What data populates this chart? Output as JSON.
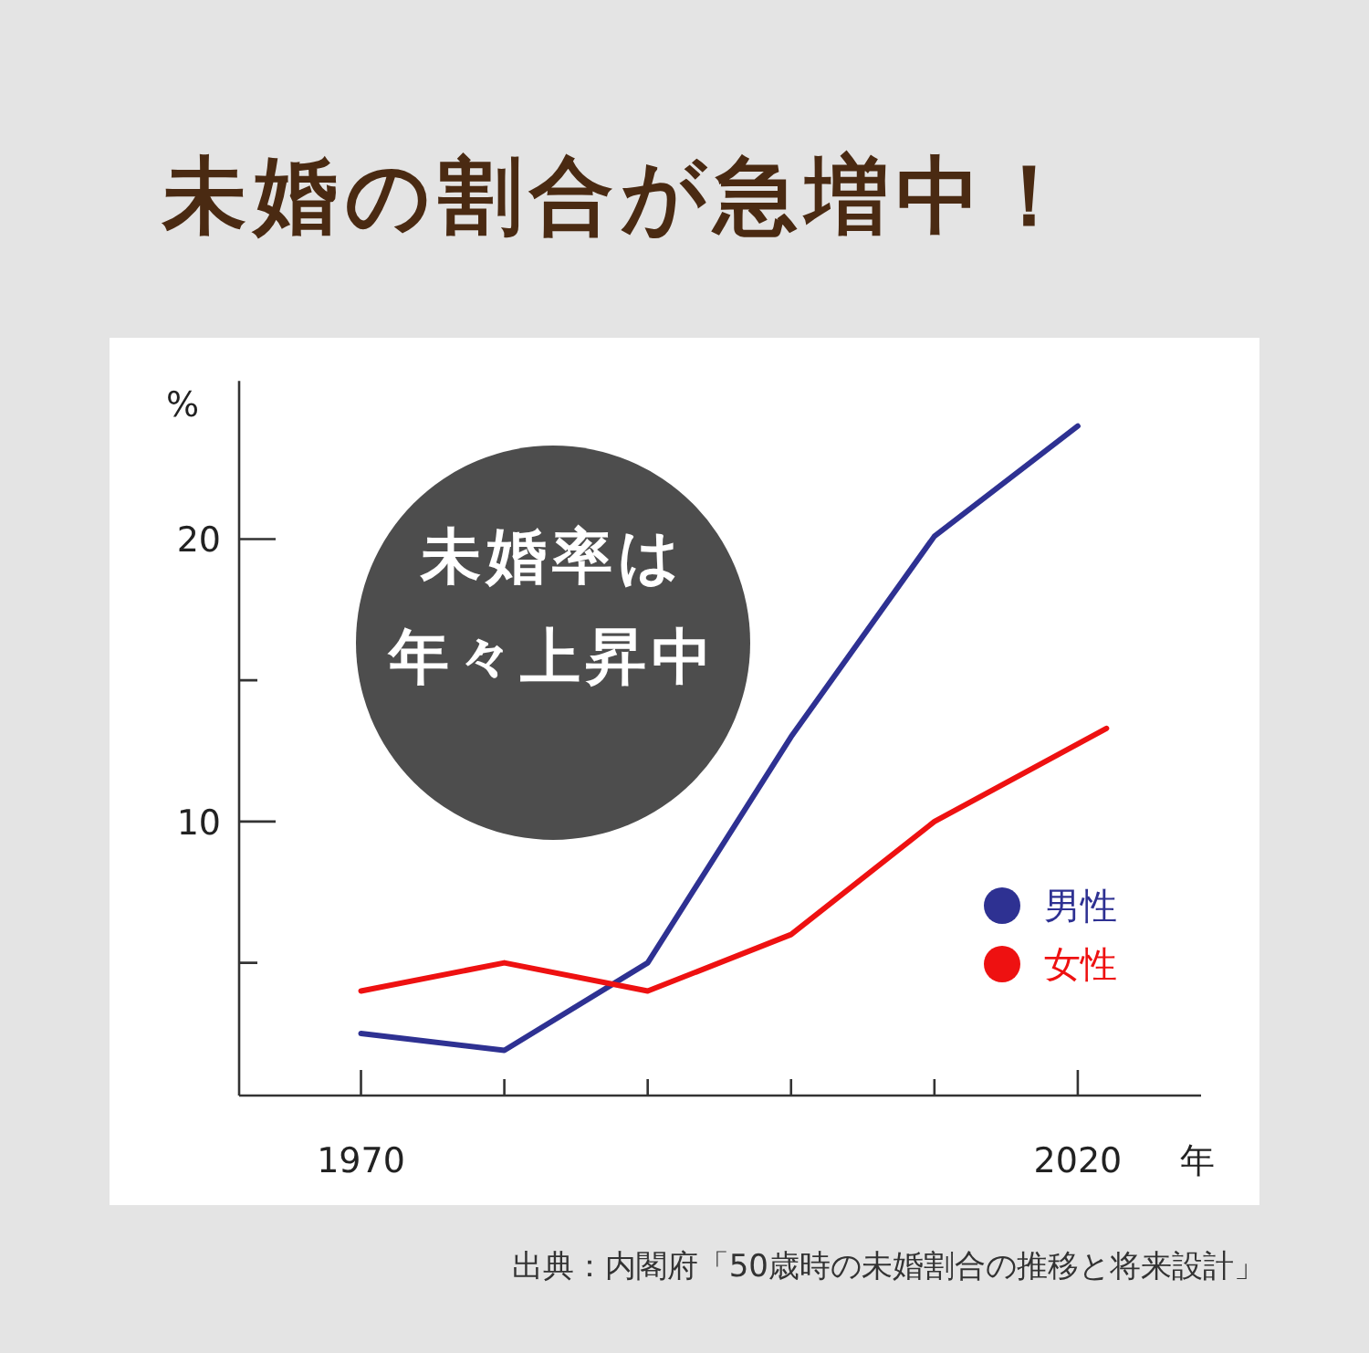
{
  "chart_data": {
    "type": "line",
    "title": "未婚の割合が急増中！",
    "xlabel": "年",
    "ylabel": "%",
    "xlim": [
      1961.5,
      2028.6
    ],
    "ylim": [
      0.3,
      25.6
    ],
    "xticks": [
      1970,
      {
        "value": 1980,
        "label": null
      },
      {
        "value": 1990,
        "label": null
      },
      {
        "value": 2000,
        "label": null
      },
      {
        "value": 2010,
        "label": null
      },
      2020
    ],
    "yticks": [
      {
        "value": 5,
        "label": null
      },
      10,
      {
        "value": 15,
        "label": null
      },
      20
    ],
    "grid": false,
    "legend": "right",
    "marker": "none",
    "line_style": "solid",
    "x": [
      1970,
      1980,
      1990,
      2000,
      2010,
      2020
    ],
    "series": [
      {
        "name": "男性",
        "color": "#2e3192",
        "values": [
          2.5,
          1.9,
          5.0,
          13.0,
          20.1,
          24.0
        ]
      },
      {
        "name": "女性",
        "color": "#ee1111",
        "x": [
          1970,
          1980,
          1990,
          2000,
          2010,
          2022
        ],
        "values": [
          4.0,
          5.0,
          4.0,
          6.0,
          10.0,
          13.3
        ]
      }
    ],
    "annotations": [
      "未婚率は",
      "年々上昇中",
      "出典：内閣府「50歳時の未婚割合の推移と将来設計」"
    ]
  }
}
